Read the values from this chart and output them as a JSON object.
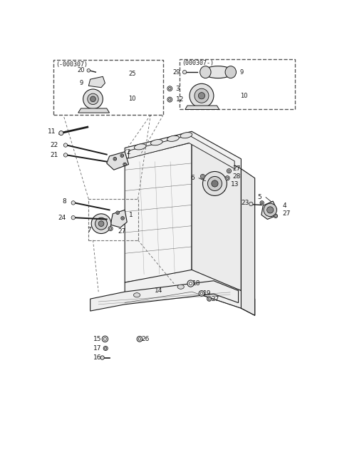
{
  "bg_color": "#ffffff",
  "lc": "#1a1a1a",
  "box1_label": "(-000307)",
  "box2_label": "(000307-)",
  "figsize": [
    4.8,
    6.31
  ],
  "dpi": 100
}
